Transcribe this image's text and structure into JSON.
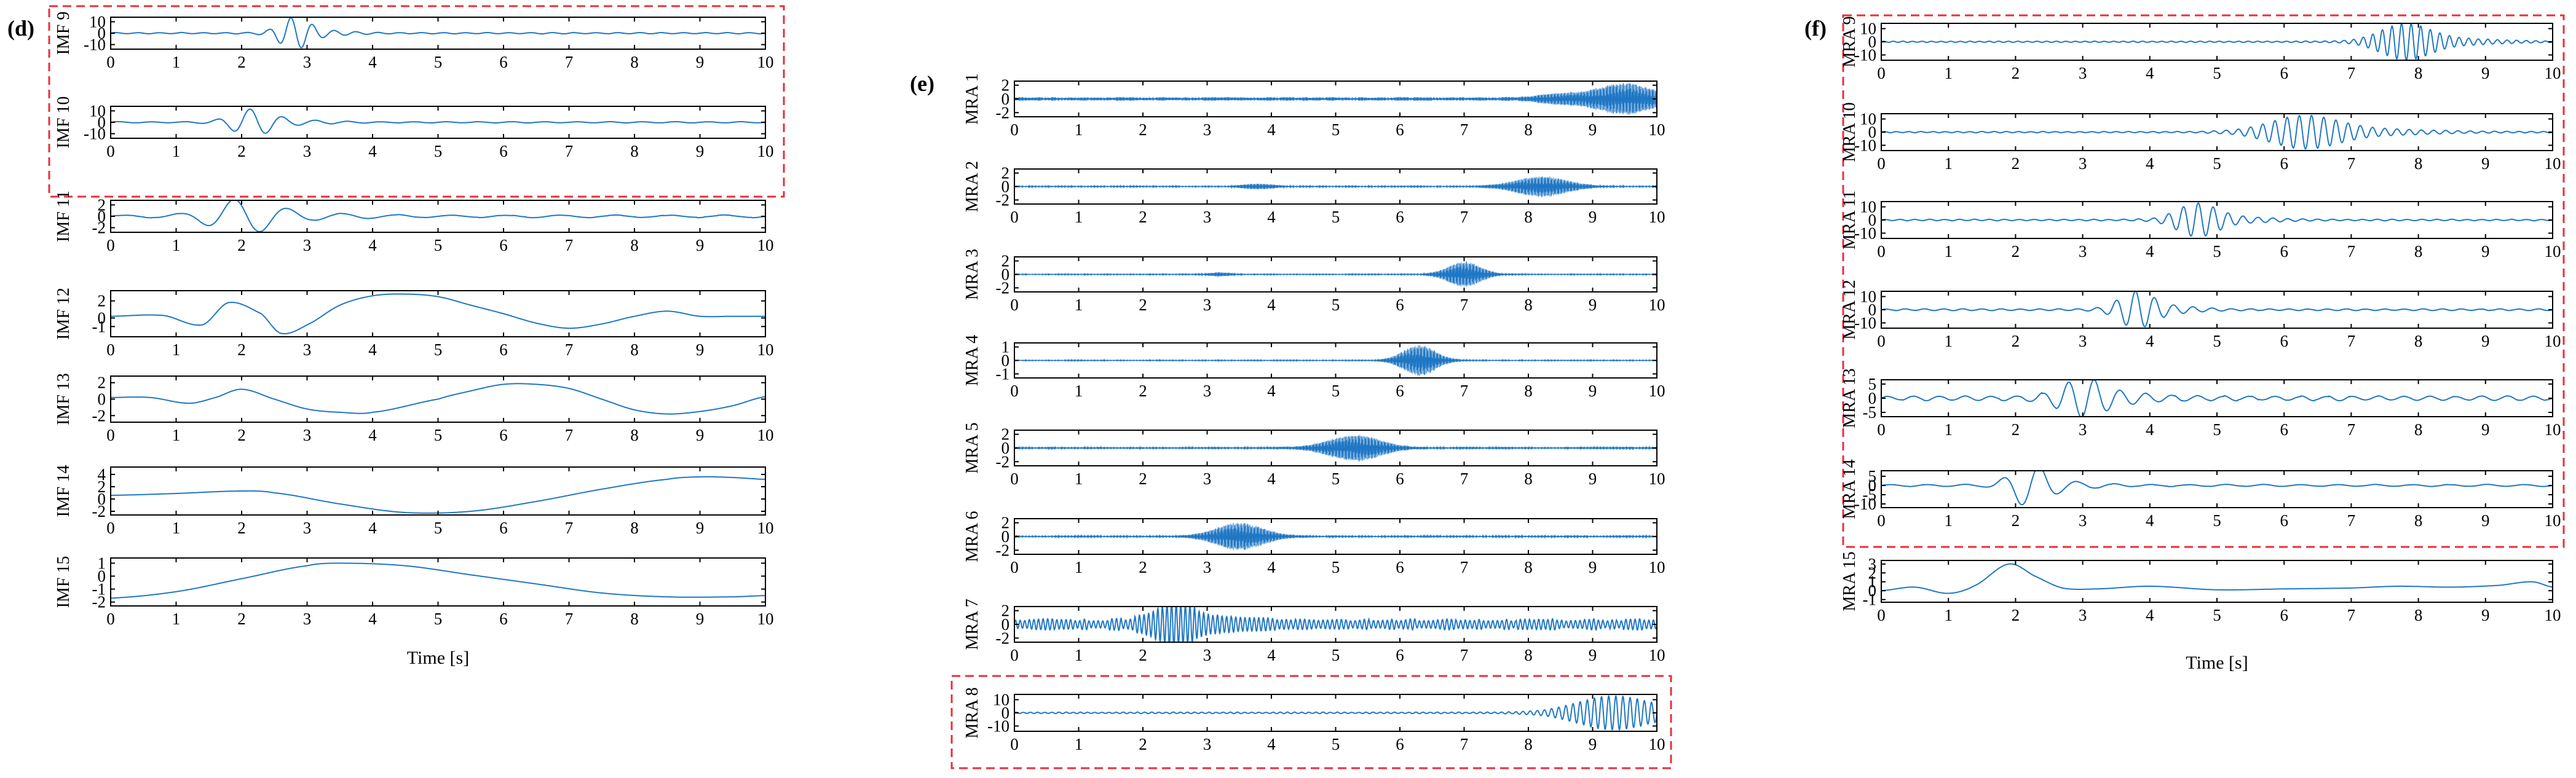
{
  "wave_color": "#1f77c4",
  "highlight_color": "#e8303a",
  "columns": [
    {
      "panel_letter": "(d)",
      "xlabel": "Time [s]",
      "x_ticks": [
        "0",
        "1",
        "2",
        "3",
        "4",
        "5",
        "6",
        "7",
        "8",
        "9",
        "10"
      ],
      "highlight_panels": [
        0,
        1
      ],
      "panels": [
        {
          "label": "IMF 9",
          "y_ticks": [
            "10",
            "0",
            "-10"
          ],
          "y_tick_values": [
            10,
            0,
            -10
          ],
          "ylim": [
            -14,
            14
          ],
          "type": "burst",
          "center": 2.8,
          "width": 0.3,
          "amp": 12,
          "freq": 3.0,
          "bg": 0.6
        },
        {
          "label": "IMF 10",
          "y_ticks": [
            "10",
            "0",
            "-10"
          ],
          "y_tick_values": [
            10,
            0,
            -10
          ],
          "ylim": [
            -14,
            14
          ],
          "type": "burst",
          "center": 2.15,
          "width": 0.4,
          "amp": 10,
          "freq": 2.0,
          "bg": 0.6
        },
        {
          "label": "IMF 11",
          "y_ticks": [
            "2",
            "0",
            "-2"
          ],
          "y_tick_values": [
            2,
            0,
            -2
          ],
          "ylim": [
            -2.8,
            2.8
          ],
          "type": "burst",
          "center": 2.0,
          "width": 0.6,
          "amp": 2.6,
          "freq": 1.2,
          "bg": 0.25
        },
        {
          "label": "IMF 12",
          "y_ticks": [
            "2",
            "0",
            "-1"
          ],
          "y_tick_values": [
            2,
            0,
            -1
          ],
          "ylim": [
            -2.2,
            3.2
          ],
          "type": "points",
          "x": [
            0,
            0.8,
            1.4,
            1.8,
            2.3,
            2.6,
            3.0,
            3.5,
            4.0,
            4.5,
            5.0,
            5.5,
            6.0,
            6.5,
            7.0,
            7.5,
            8.0,
            8.5,
            9.0,
            9.5,
            10
          ],
          "y": [
            0.2,
            0.3,
            -0.8,
            1.8,
            0.5,
            -1.8,
            -0.8,
            1.5,
            2.6,
            2.8,
            2.5,
            1.5,
            0.5,
            -0.6,
            -1.2,
            -0.7,
            0.2,
            0.8,
            0.2,
            0.2,
            0.2
          ]
        },
        {
          "label": "IMF 13",
          "y_ticks": [
            "2",
            "0",
            "-2"
          ],
          "y_tick_values": [
            2,
            0,
            -2
          ],
          "ylim": [
            -2.8,
            2.8
          ],
          "type": "points",
          "x": [
            0,
            0.6,
            1.2,
            1.6,
            2.0,
            2.5,
            3.0,
            3.5,
            4.0,
            5.0,
            5.5,
            6.0,
            6.5,
            7.0,
            7.5,
            8.0,
            8.5,
            9.0,
            9.5,
            10
          ],
          "y": [
            0.2,
            0.2,
            -0.5,
            0.2,
            1.2,
            0.0,
            -1.2,
            -1.6,
            -1.6,
            0.0,
            1.0,
            1.8,
            1.8,
            1.3,
            0.0,
            -1.3,
            -1.8,
            -1.5,
            -0.8,
            0.3
          ]
        },
        {
          "label": "IMF 14",
          "y_ticks": [
            "4",
            "2",
            "0",
            "-2"
          ],
          "y_tick_values": [
            4,
            2,
            0,
            -2
          ],
          "ylim": [
            -2.6,
            5.2
          ],
          "type": "points",
          "x": [
            0,
            1.0,
            2.0,
            2.5,
            3.5,
            4.5,
            5.5,
            6.5,
            7.5,
            8.5,
            9.0,
            9.5,
            10
          ],
          "y": [
            0.6,
            0.9,
            1.3,
            1.0,
            -0.8,
            -2.2,
            -2.0,
            -0.4,
            1.6,
            3.2,
            3.6,
            3.5,
            3.2
          ]
        },
        {
          "label": "IMF 15",
          "y_ticks": [
            "1",
            "0",
            "-1",
            "-2"
          ],
          "y_tick_values": [
            1,
            0,
            -1,
            -2
          ],
          "ylim": [
            -2.3,
            1.4
          ],
          "type": "points",
          "x": [
            0,
            1.0,
            2.0,
            3.0,
            3.5,
            4.5,
            5.5,
            6.5,
            7.5,
            8.5,
            9.5,
            10
          ],
          "y": [
            -1.7,
            -1.2,
            -0.2,
            0.8,
            1.0,
            0.8,
            0.1,
            -0.6,
            -1.3,
            -1.6,
            -1.6,
            -1.5
          ]
        }
      ]
    },
    {
      "panel_letter": "(e)",
      "xlabel": "",
      "x_ticks": [
        "0",
        "1",
        "2",
        "3",
        "4",
        "5",
        "6",
        "7",
        "8",
        "9",
        "10"
      ],
      "highlight_panels": [
        7
      ],
      "panels": [
        {
          "label": "MRA 1",
          "y_ticks": [
            "2",
            "0",
            "-2"
          ],
          "y_tick_values": [
            2,
            0,
            -2
          ],
          "ylim": [
            -2.6,
            2.6
          ],
          "type": "envelope",
          "bg": 0.25,
          "peaks": [
            {
              "c": 9.5,
              "w": 0.6,
              "a": 2.2
            },
            {
              "c": 8.5,
              "w": 0.5,
              "a": 0.6
            }
          ],
          "fill": true
        },
        {
          "label": "MRA 2",
          "y_ticks": [
            "2",
            "0",
            "-2"
          ],
          "y_tick_values": [
            2,
            0,
            -2
          ],
          "ylim": [
            -2.6,
            2.6
          ],
          "type": "envelope",
          "bg": 0.12,
          "peaks": [
            {
              "c": 8.2,
              "w": 0.55,
              "a": 1.5
            },
            {
              "c": 3.8,
              "w": 0.3,
              "a": 0.35
            }
          ],
          "fill": true
        },
        {
          "label": "MRA 3",
          "y_ticks": [
            "2",
            "0",
            "-2"
          ],
          "y_tick_values": [
            2,
            0,
            -2
          ],
          "ylim": [
            -2.6,
            2.6
          ],
          "type": "envelope",
          "bg": 0.1,
          "peaks": [
            {
              "c": 7.0,
              "w": 0.35,
              "a": 1.9
            },
            {
              "c": 3.2,
              "w": 0.2,
              "a": 0.25
            }
          ],
          "fill": true
        },
        {
          "label": "MRA 4",
          "y_ticks": [
            "1",
            "0",
            "-1"
          ],
          "y_tick_values": [
            1,
            0,
            -1
          ],
          "ylim": [
            -1.3,
            1.3
          ],
          "type": "envelope",
          "bg": 0.05,
          "peaks": [
            {
              "c": 6.3,
              "w": 0.35,
              "a": 1.15
            }
          ],
          "fill": true
        },
        {
          "label": "MRA 5",
          "y_ticks": [
            "2",
            "0",
            "-2"
          ],
          "y_tick_values": [
            2,
            0,
            -2
          ],
          "ylim": [
            -2.6,
            2.6
          ],
          "type": "envelope",
          "bg": 0.15,
          "peaks": [
            {
              "c": 5.3,
              "w": 0.55,
              "a": 1.9
            }
          ],
          "fill": true
        },
        {
          "label": "MRA 6",
          "y_ticks": [
            "2",
            "0",
            "-2"
          ],
          "y_tick_values": [
            2,
            0,
            -2
          ],
          "ylim": [
            -2.6,
            2.6
          ],
          "type": "envelope",
          "bg": 0.15,
          "peaks": [
            {
              "c": 3.5,
              "w": 0.5,
              "a": 2.0
            }
          ],
          "fill": true
        },
        {
          "label": "MRA 7",
          "y_ticks": [
            "2",
            "0",
            "-2"
          ],
          "y_tick_values": [
            2,
            0,
            -2
          ],
          "ylim": [
            -2.6,
            2.6
          ],
          "type": "burst",
          "center": 2.5,
          "width": 0.45,
          "amp": 2.1,
          "freq": 14,
          "bg": 0.8
        },
        {
          "label": "MRA 8",
          "y_ticks": [
            "10",
            "0",
            "-10"
          ],
          "y_tick_values": [
            10,
            0,
            -10
          ],
          "ylim": [
            -14,
            14
          ],
          "type": "burst",
          "center": 9.3,
          "width": 0.75,
          "amp": 11,
          "freq": 9,
          "bg": 0.6
        }
      ]
    },
    {
      "panel_letter": "(f)",
      "xlabel": "Time [s]",
      "x_ticks": [
        "0",
        "1",
        "2",
        "3",
        "4",
        "5",
        "6",
        "7",
        "8",
        "9",
        "10"
      ],
      "highlight_panels": [
        0,
        1,
        2,
        3,
        4,
        5
      ],
      "panels": [
        {
          "label": "MRA 9",
          "y_ticks": [
            "10",
            "0",
            "-10"
          ],
          "y_tick_values": [
            10,
            0,
            -10
          ],
          "ylim": [
            -14,
            14
          ],
          "type": "burst",
          "center": 7.8,
          "width": 0.5,
          "amp": 12,
          "freq": 7,
          "bg": 0.5
        },
        {
          "label": "MRA 10",
          "y_ticks": [
            "10",
            "0",
            "-10"
          ],
          "y_tick_values": [
            10,
            0,
            -10
          ],
          "ylim": [
            -14,
            14
          ],
          "type": "burst",
          "center": 6.3,
          "width": 0.7,
          "amp": 11,
          "freq": 5.5,
          "bg": 0.5
        },
        {
          "label": "MRA 11",
          "y_ticks": [
            "10",
            "0",
            "-10"
          ],
          "y_tick_values": [
            10,
            0,
            -10
          ],
          "ylim": [
            -14,
            14
          ],
          "type": "burst",
          "center": 4.7,
          "width": 0.4,
          "amp": 11,
          "freq": 4.5,
          "bg": 0.6
        },
        {
          "label": "MRA 12",
          "y_ticks": [
            "10",
            "0",
            "-10"
          ],
          "y_tick_values": [
            10,
            0,
            -10
          ],
          "ylim": [
            -14,
            14
          ],
          "type": "burst",
          "center": 3.8,
          "width": 0.35,
          "amp": 12,
          "freq": 3.5,
          "bg": 0.7
        },
        {
          "label": "MRA 13",
          "y_ticks": [
            "5",
            "0",
            "-5"
          ],
          "y_tick_values": [
            5,
            0,
            -5
          ],
          "ylim": [
            -6.5,
            6.5
          ],
          "type": "burst",
          "center": 3.0,
          "width": 0.45,
          "amp": 5.5,
          "freq": 2.6,
          "bg": 0.9
        },
        {
          "label": "MRA 14",
          "y_ticks": [
            "5",
            "0",
            "-5",
            "-10"
          ],
          "y_tick_values": [
            5,
            0,
            -5,
            -10
          ],
          "ylim": [
            -12,
            8
          ],
          "type": "burst",
          "center": 2.2,
          "width": 0.35,
          "amp": 10,
          "freq": 1.8,
          "bg": 0.6
        },
        {
          "label": "MRA 15",
          "y_ticks": [
            "3",
            "2",
            "1",
            "0",
            "-1"
          ],
          "y_tick_values": [
            3,
            2,
            1,
            0,
            -1
          ],
          "ylim": [
            -1.3,
            3.4
          ],
          "type": "points",
          "x": [
            0,
            0.5,
            1.0,
            1.4,
            1.9,
            2.3,
            2.7,
            3.2,
            4.0,
            5.0,
            6.0,
            7.0,
            7.7,
            8.5,
            9.2,
            9.7,
            10
          ],
          "y": [
            0,
            0.4,
            -0.3,
            0.6,
            3.0,
            1.6,
            0.3,
            0.2,
            0.5,
            0.1,
            0.2,
            0.3,
            0.5,
            0.4,
            0.6,
            1.0,
            0.4
          ]
        }
      ]
    }
  ]
}
